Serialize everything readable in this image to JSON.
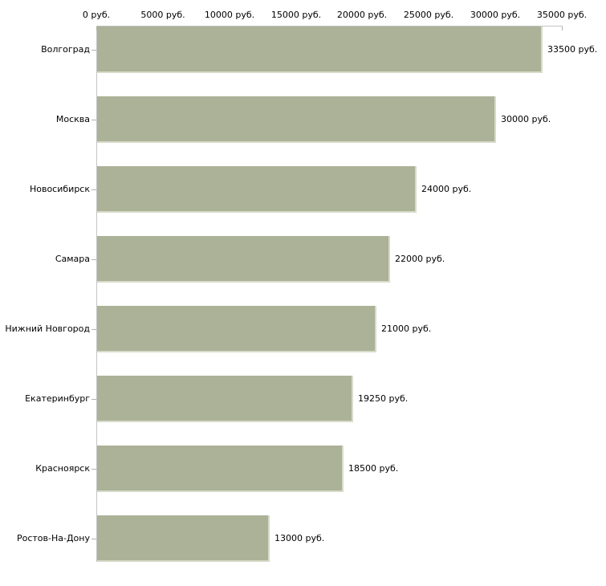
{
  "chart_data": {
    "type": "bar",
    "orientation": "horizontal",
    "title": "",
    "xlabel": "",
    "ylabel": "",
    "grid": false,
    "legend_position": "none",
    "categories": [
      "Волгоград",
      "Москва",
      "Новосибирск",
      "Самара",
      "Нижний Новгород",
      "Екатеринбург",
      "Красноярск",
      "Ростов-На-Дону"
    ],
    "values": [
      33500,
      30000,
      24000,
      22000,
      21000,
      19250,
      18500,
      13000
    ],
    "value_labels": [
      "33500 руб.",
      "30000 руб.",
      "24000 руб.",
      "22000 руб.",
      "21000 руб.",
      "19250 руб.",
      "18500 руб.",
      "13000 руб."
    ],
    "xlim": [
      0,
      35000
    ],
    "x_ticks": [
      0,
      5000,
      10000,
      15000,
      20000,
      25000,
      30000,
      35000
    ],
    "x_tick_labels": [
      "0 руб.",
      "5000 руб.",
      "10000 руб.",
      "15000 руб.",
      "20000 руб.",
      "25000 руб.",
      "30000 руб.",
      "35000 руб."
    ],
    "colors": {
      "bar_fill": "#abb297",
      "bar_edge_highlight": "#d9dbca",
      "axis_line": "#c4c4c4",
      "tick_mark": "#b3b3a6",
      "text": "#000000",
      "background": "#ffffff"
    }
  }
}
